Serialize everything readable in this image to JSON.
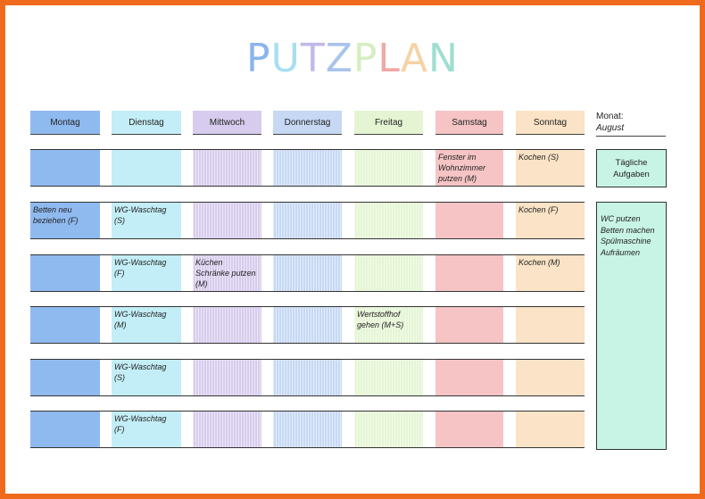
{
  "title": {
    "letters": [
      {
        "ch": "P",
        "color": "#8ab4ee"
      },
      {
        "ch": "U",
        "color": "#a6dff0"
      },
      {
        "ch": "T",
        "color": "#c2b8e8"
      },
      {
        "ch": "Z",
        "color": "#a9c4ec"
      },
      {
        "ch": "P",
        "color": "#d6eec0"
      },
      {
        "ch": "L",
        "color": "#f0a7a7"
      },
      {
        "ch": "A",
        "color": "#f5d3a6"
      },
      {
        "ch": "N",
        "color": "#9fded0"
      }
    ]
  },
  "days": [
    {
      "label": "Montag",
      "color": "#8fbaf0"
    },
    {
      "label": "Dienstag",
      "color": "#c3eef7"
    },
    {
      "label": "Mittwoch",
      "color": "#d7ccee"
    },
    {
      "label": "Donnerstag",
      "color": "#c6d8f3"
    },
    {
      "label": "Freitag",
      "color": "#e5f5d3"
    },
    {
      "label": "Samstag",
      "color": "#f6c4c4"
    },
    {
      "label": "Sonntag",
      "color": "#fae3c6"
    }
  ],
  "month": {
    "label": "Monat:",
    "value": "August"
  },
  "rows": [
    [
      "",
      "",
      "",
      "",
      "",
      "Fenster im\nWohnzimmer\nputzen (M)",
      "Kochen (S)"
    ],
    [
      "Betten neu\nbeziehen (F)",
      "WG-Waschtag\n(S)",
      "",
      "",
      "",
      "",
      "Kochen (F)"
    ],
    [
      "",
      "WG-Waschtag\n(F)",
      "Küchen\nSchränke putzen\n(M)",
      "",
      "",
      "",
      "Kochen (M)"
    ],
    [
      "",
      "WG-Waschtag\n(M)",
      "",
      "",
      "Wertstoffhof\ngehen (M+S)",
      "",
      ""
    ],
    [
      "",
      "WG-Waschtag\n(S)",
      "",
      "",
      "",
      "",
      ""
    ],
    [
      "",
      "WG-Waschtag\n(F)",
      "",
      "",
      "",
      "",
      ""
    ]
  ],
  "daily": {
    "heading": "Tägliche Aufgaben",
    "tasks": [
      "WC putzen",
      "Betten machen",
      "Spülmaschine",
      "Aufräumen"
    ]
  }
}
